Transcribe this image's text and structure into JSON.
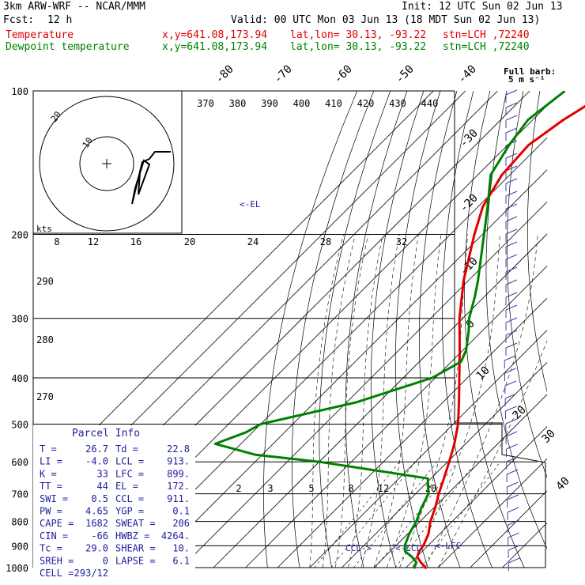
{
  "header": {
    "model": "3km ARW-WRF -- NCAR/MMM",
    "init": "Init: 12 UTC Sun 02 Jun 13",
    "fcst_label": "Fcst:",
    "fcst_value": "12 h",
    "valid": "Valid: 00 UTC Mon 03 Jun 13 (18 MDT Sun 02 Jun 13)",
    "temp_line": {
      "name": "Temperature",
      "xy": "x,y=641.08,173.94",
      "latlon": "lat,lon= 30.13, -93.22",
      "stn": "stn=LCH ,72240"
    },
    "dew_line": {
      "name": "Dewpoint temperature",
      "xy": "x,y=641.08,173.94",
      "latlon": "lat,lon= 30.13, -93.22",
      "stn": "stn=LCH ,72240"
    }
  },
  "barb_legend": {
    "title": "Full barb:",
    "value": "5 m s⁻¹"
  },
  "hodograph": {
    "unit": "kts",
    "ring_labels": [
      "10",
      "20"
    ]
  },
  "parcel_info": {
    "title": "Parcel Info",
    "rows": [
      [
        "T  =",
        "26.7",
        "Td =",
        "22.8"
      ],
      [
        "LI =",
        "-4.0",
        "LCL =",
        "913."
      ],
      [
        "K  =",
        "33",
        "LFC =",
        "899."
      ],
      [
        "TT =",
        "44",
        "EL  =",
        "172."
      ],
      [
        "SWI =",
        "0.5",
        "CCL =",
        "911."
      ],
      [
        "PW =",
        "4.65",
        "YGP =",
        "0.1"
      ],
      [
        "CAPE =",
        "1682",
        "SWEAT =",
        "206"
      ],
      [
        "CIN =",
        "-66",
        "HWBZ =",
        "4264."
      ],
      [
        "Tc =",
        "29.0",
        "SHEAR =",
        "10."
      ],
      [
        "SREH =",
        "0",
        "LAPSE =",
        "6.1"
      ],
      [
        "CELL =",
        "293/12",
        "",
        ""
      ]
    ]
  },
  "level_labels": {
    "el": "<-EL",
    "ccl": "CCL->",
    "lcl": "<-LCL",
    "lfc": "<-LFC"
  },
  "chart_data": {
    "type": "line",
    "diagram": "skew-T log-p",
    "y_axis": {
      "quantity": "pressure",
      "unit": "hPa",
      "ticks": [
        100,
        200,
        300,
        400,
        500,
        600,
        700,
        800,
        900,
        1000
      ],
      "range": [
        100,
        1000
      ],
      "scale": "log"
    },
    "isotherm_labels": [
      "-80",
      "-70",
      "-60",
      "-50",
      "-40",
      "-30",
      "-20",
      "-10",
      "0",
      "10",
      "20",
      "30",
      "40"
    ],
    "isentrope_labels_top": [
      "370",
      "380",
      "390",
      "400",
      "410",
      "420",
      "430",
      "440"
    ],
    "isentrope_labels_left": [
      "290",
      "280",
      "270"
    ],
    "mixing_ratio_labels": [
      "2",
      "3",
      "5",
      "8",
      "12",
      "20"
    ],
    "speed_labels": [
      "8",
      "12",
      "16",
      "20",
      "24",
      "28",
      "32"
    ],
    "series": [
      {
        "name": "Temperature",
        "color": "#e00000",
        "p": [
          1005,
          975,
          950,
          925,
          900,
          850,
          800,
          750,
          700,
          650,
          600,
          550,
          500,
          450,
          400,
          350,
          300,
          250,
          200,
          175,
          150,
          130,
          115,
          100
        ],
        "t": [
          26.7,
          23.0,
          20.2,
          19.0,
          18.6,
          16.5,
          13.2,
          10.5,
          7.2,
          4.0,
          0.5,
          -3.5,
          -8.5,
          -15.0,
          -22.5,
          -31.0,
          -41.0,
          -51.5,
          -62.5,
          -68.5,
          -72.5,
          -73.5,
          -70.5,
          -65.0
        ]
      },
      {
        "name": "Dewpoint temperature",
        "color": "#008000",
        "p": [
          1005,
          975,
          950,
          925,
          900,
          850,
          800,
          750,
          700,
          650,
          600,
          580,
          550,
          520,
          500,
          450,
          400,
          370,
          350,
          320,
          300,
          270,
          250,
          200,
          175,
          150,
          130,
          115,
          100
        ],
        "t": [
          22.8,
          21.6,
          18.6,
          14.7,
          12.8,
          10.5,
          8.8,
          6.2,
          4.0,
          -1.0,
          -40.0,
          -62.0,
          -78.0,
          -72.0,
          -70.0,
          -47.0,
          -31.0,
          -27.0,
          -29.0,
          -34.0,
          -38.0,
          -43.0,
          -47.0,
          -59.5,
          -67.0,
          -76.0,
          -79.5,
          -81.5,
          -79.0
        ]
      }
    ]
  },
  "colors": {
    "temperature": "#e00000",
    "dewpoint": "#008000",
    "barbs": "#4040b0",
    "hodograph": "#000000"
  }
}
